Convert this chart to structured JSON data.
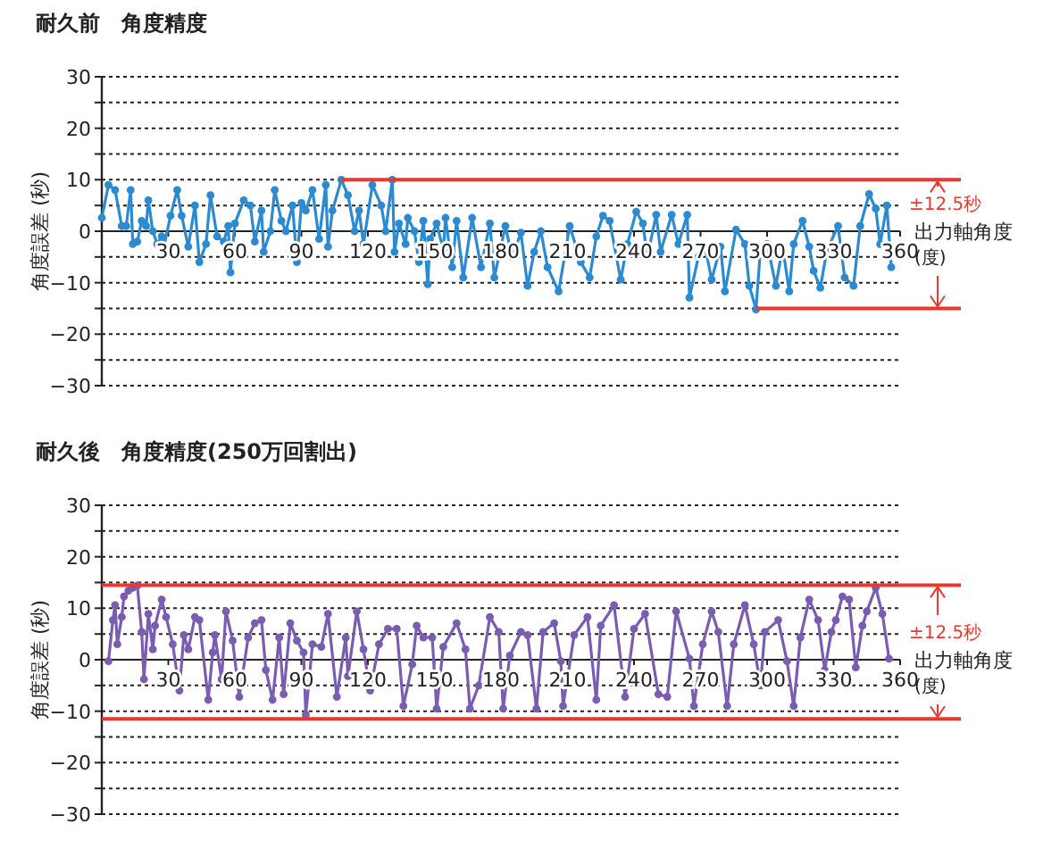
{
  "chart_data": [
    {
      "type": "line",
      "title": "耐久前　角度精度",
      "ylabel": "角度誤差 (秒)",
      "xlabel": "出力軸角度",
      "annotations": [
        "±12.5秒",
        "(度)"
      ],
      "xlim": [
        0,
        360
      ],
      "xticks": [
        30,
        60,
        90,
        120,
        150,
        180,
        210,
        240,
        270,
        300,
        330,
        360
      ],
      "ylim": [
        -30,
        30
      ],
      "yticks": [
        -30,
        {
          "value": -25,
          "label": null
        },
        -20,
        {
          "value": -15,
          "label": null
        },
        -10,
        {
          "value": -5,
          "label": null
        },
        0,
        {
          "value": 5,
          "label": null
        },
        10,
        {
          "value": 15,
          "label": null
        },
        20,
        {
          "value": 25,
          "label": null
        },
        30
      ],
      "grid": "y",
      "marker": "circle",
      "series": [
        {
          "color": "#2b8ad0",
          "x": [
            0,
            3,
            6,
            9,
            11,
            13,
            14,
            16,
            18,
            20,
            21,
            23,
            25,
            27,
            28,
            31,
            34,
            36,
            39,
            42,
            44,
            47,
            49,
            52,
            55,
            57,
            58,
            60,
            64,
            67,
            69,
            72,
            73,
            76,
            78,
            81,
            83,
            86,
            88,
            90,
            92,
            95,
            98,
            101,
            102,
            104,
            108,
            111,
            114,
            116,
            118,
            122,
            126,
            128,
            131,
            132,
            134,
            137,
            138,
            141,
            143,
            145,
            147,
            148,
            151,
            154,
            155,
            158,
            160,
            163,
            167,
            171,
            175,
            177,
            182,
            185,
            189,
            192,
            195,
            198,
            201,
            206,
            211,
            216,
            220,
            223,
            226,
            229,
            234,
            237,
            241,
            244,
            246,
            250,
            252,
            257,
            260,
            264,
            265,
            269,
            272,
            275,
            279,
            281,
            286,
            290,
            292,
            295,
            297,
            300,
            304,
            307,
            310,
            312,
            316,
            319,
            321,
            324,
            327,
            332,
            335,
            339,
            342,
            346,
            349,
            351,
            354,
            356
          ],
          "values": [
            2.6,
            9,
            8,
            1,
            1,
            8,
            -2.5,
            -2,
            2,
            1,
            6,
            0,
            -2.5,
            -1,
            -3,
            3,
            8,
            3,
            -3,
            5,
            -6,
            -2.5,
            7,
            -1,
            -2,
            1,
            -8,
            1.5,
            6,
            5,
            -2,
            4,
            -4,
            0,
            8,
            2,
            0,
            5,
            -6,
            5.5,
            4,
            8,
            -1.5,
            9,
            -3,
            4,
            10,
            7,
            0,
            4,
            -2.5,
            9,
            5,
            0,
            10,
            -4,
            1.5,
            -2.5,
            2.6,
            0,
            -6,
            2,
            -10.3,
            -1.5,
            1.5,
            -3.7,
            2.6,
            -7,
            2,
            -9,
            2.6,
            -7,
            1.5,
            -9,
            1,
            -5,
            -0.3,
            -10.6,
            -4,
            0,
            -7,
            -11.7,
            1,
            -6,
            -9,
            -1,
            3,
            2,
            -9.4,
            -2.5,
            3.8,
            1.5,
            -5,
            3.2,
            -4,
            3.2,
            -2.5,
            3.2,
            -12.9,
            -5,
            -3,
            -9.4,
            -3,
            -11.7,
            0.3,
            -2.5,
            -10.6,
            -15.2,
            -3.7,
            -2.5,
            -10.6,
            -3,
            -11.7,
            -2.5,
            2,
            -3,
            -7.7,
            -11,
            -3.7,
            1,
            -9,
            -10.6,
            1,
            7.2,
            4.4,
            -2.5,
            5,
            -7
          ]
        }
      ],
      "ref_lines": [
        {
          "axis": "y",
          "value": 10,
          "color": "#e8392f"
        },
        {
          "axis": "y",
          "value": -15,
          "color": "#e8392f"
        }
      ]
    },
    {
      "type": "line",
      "title": "耐久後　角度精度(250万回割出)",
      "ylabel": "角度誤差 (秒)",
      "xlabel": "出力軸角度",
      "annotations": [
        "±12.5秒",
        "(度)"
      ],
      "xlim": [
        0,
        360
      ],
      "xticks": [
        30,
        60,
        90,
        120,
        150,
        180,
        210,
        240,
        270,
        300,
        330,
        360
      ],
      "ylim": [
        -30,
        30
      ],
      "yticks": [
        -30,
        {
          "value": -25,
          "label": null
        },
        -20,
        {
          "value": -15,
          "label": null
        },
        -10,
        {
          "value": -5,
          "label": null
        },
        0,
        {
          "value": 5,
          "label": null
        },
        10,
        {
          "value": 15,
          "label": null
        },
        20,
        {
          "value": 25,
          "label": null
        },
        30
      ],
      "grid": "y",
      "marker": "circle",
      "series": [
        {
          "color": "#7a5cb0",
          "x": [
            3,
            5,
            6,
            7,
            9,
            10,
            12,
            14,
            16,
            18,
            19,
            21,
            23,
            24,
            27,
            29,
            32,
            35,
            37,
            39,
            42,
            44,
            48,
            50,
            51,
            54,
            56,
            59,
            62,
            66,
            69,
            72,
            74,
            77,
            80,
            82,
            85,
            88,
            91,
            92,
            95,
            99,
            102,
            106,
            110,
            111,
            115,
            118,
            121,
            125,
            129,
            133,
            136,
            140,
            142,
            145,
            149,
            151,
            154,
            160,
            164,
            166,
            170,
            175,
            179,
            181,
            184,
            189,
            192,
            196,
            199,
            204,
            207,
            208,
            213,
            219,
            223,
            225,
            231,
            236,
            240,
            245,
            251,
            255,
            259,
            265,
            267,
            271,
            275,
            278,
            282,
            285,
            290,
            294,
            297,
            299,
            305,
            309,
            312,
            315,
            319,
            323,
            326,
            329,
            331,
            334,
            337,
            340,
            343,
            345,
            349,
            352,
            355
          ],
          "values": [
            -0.3,
            7.7,
            10.6,
            3,
            8.3,
            12.3,
            13.4,
            14,
            14.4,
            5.4,
            -3.8,
            8.9,
            2,
            6.6,
            11.7,
            8.3,
            3,
            -6,
            4.8,
            2,
            8.3,
            7.7,
            -7.8,
            1.4,
            4.8,
            -3.8,
            9.4,
            3.7,
            -7.2,
            4.3,
            7.1,
            7.7,
            -2,
            -7.8,
            4.3,
            -6.7,
            7.1,
            3.7,
            1.4,
            -10.7,
            3,
            2.5,
            8.9,
            -7.2,
            4.3,
            -3.2,
            9.4,
            2,
            -6,
            3,
            6,
            6,
            -9,
            -0.9,
            6.6,
            4.3,
            4.3,
            -9.5,
            2.5,
            7.1,
            2,
            -9.5,
            -5,
            8.3,
            5.4,
            -9.5,
            0.8,
            5.4,
            4.8,
            -9.5,
            5.4,
            7.1,
            -0.3,
            -9,
            4.8,
            8.3,
            -7.8,
            6.6,
            10.6,
            -7.2,
            6,
            8.9,
            -6.7,
            -7.2,
            9.4,
            0.2,
            -9,
            3,
            9.4,
            5.4,
            -9,
            3,
            10.6,
            3,
            -5,
            5.4,
            7.7,
            -0.3,
            -9,
            4.3,
            11.7,
            7.7,
            -2,
            5.4,
            7.7,
            12.3,
            11.7,
            -1.5,
            6.6,
            9.4,
            14,
            8.9,
            0.2
          ]
        }
      ],
      "ref_lines": [
        {
          "axis": "y",
          "value": 14.5,
          "color": "#e8392f"
        },
        {
          "axis": "y",
          "value": -11.5,
          "color": "#e8392f"
        }
      ]
    }
  ]
}
